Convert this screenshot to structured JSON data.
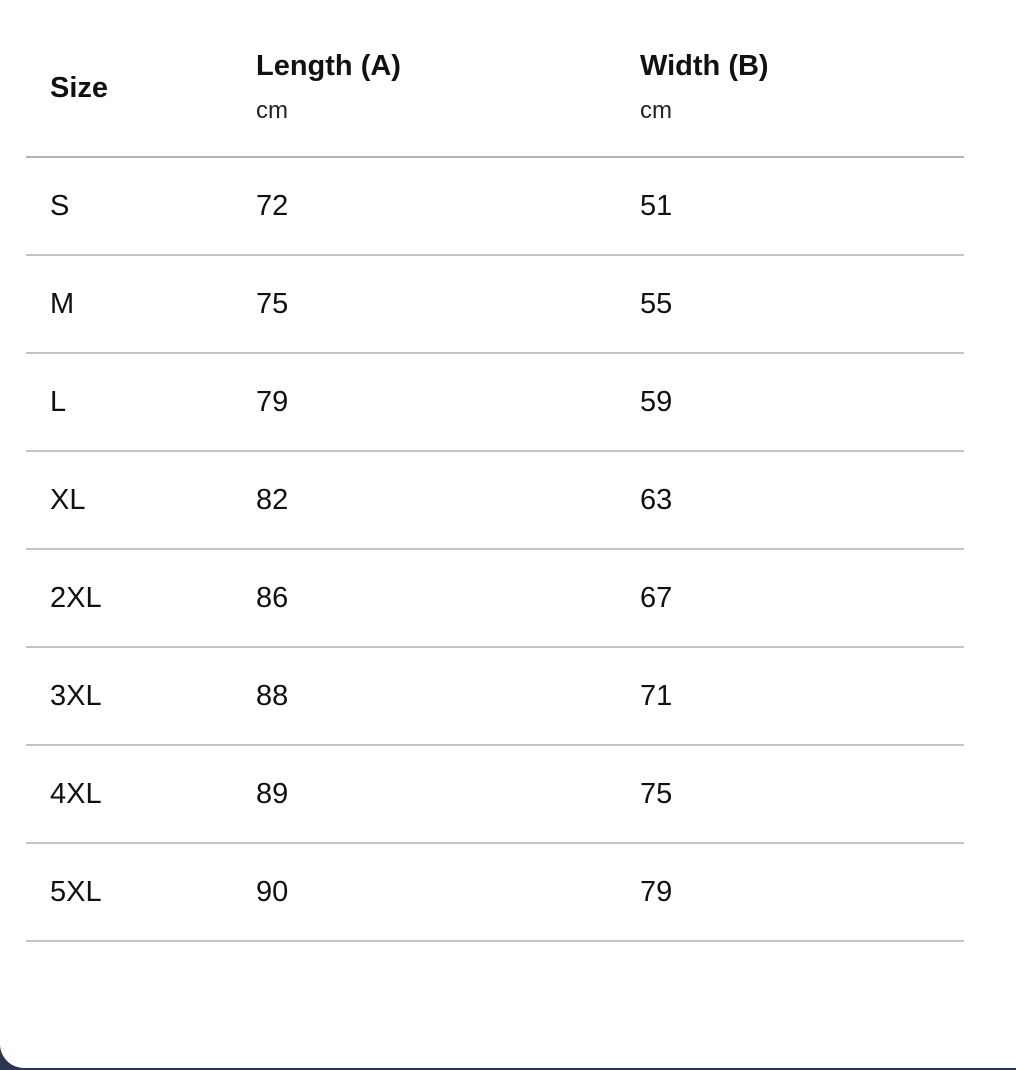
{
  "table": {
    "columns": [
      {
        "title": "Size",
        "unit": ""
      },
      {
        "title": "Length (A)",
        "unit": "cm"
      },
      {
        "title": "Width (B)",
        "unit": "cm"
      }
    ],
    "rows": [
      [
        "S",
        "72",
        "51"
      ],
      [
        "M",
        "75",
        "55"
      ],
      [
        "L",
        "79",
        "59"
      ],
      [
        "XL",
        "82",
        "63"
      ],
      [
        "2XL",
        "86",
        "67"
      ],
      [
        "3XL",
        "88",
        "71"
      ],
      [
        "4XL",
        "89",
        "75"
      ],
      [
        "5XL",
        "90",
        "79"
      ]
    ]
  }
}
